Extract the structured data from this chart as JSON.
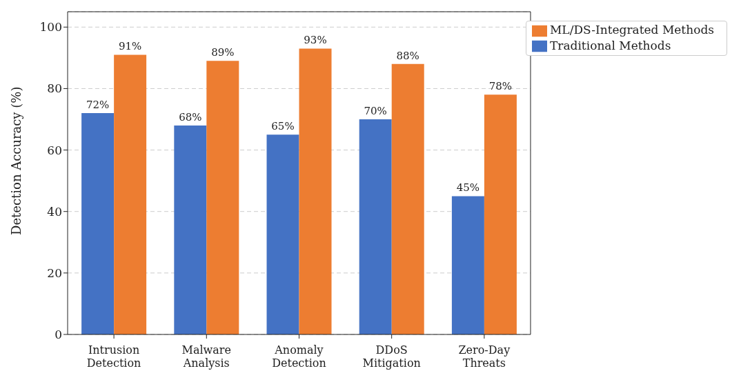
{
  "chart_data": {
    "type": "bar",
    "ylabel": "Detection Accuracy (%)",
    "categories": [
      "Intrusion Detection",
      "Malware Analysis",
      "Anomaly Detection",
      "DDoS Mitigation",
      "Zero-Day Threats"
    ],
    "series": [
      {
        "name": "Traditional Methods",
        "color": "#4472c4",
        "values": [
          72,
          68,
          65,
          70,
          45
        ],
        "value_labels": [
          "72%",
          "68%",
          "65%",
          "70%",
          "45%"
        ]
      },
      {
        "name": "ML/DS-Integrated Methods",
        "color": "#ed7d31",
        "values": [
          91,
          89,
          93,
          88,
          78
        ],
        "value_labels": [
          "91%",
          "89%",
          "93%",
          "88%",
          "78%"
        ]
      }
    ],
    "ylim": [
      0,
      105
    ],
    "yticks": [
      0,
      20,
      40,
      60,
      80,
      100
    ],
    "grid": "y",
    "legend": "top right"
  }
}
